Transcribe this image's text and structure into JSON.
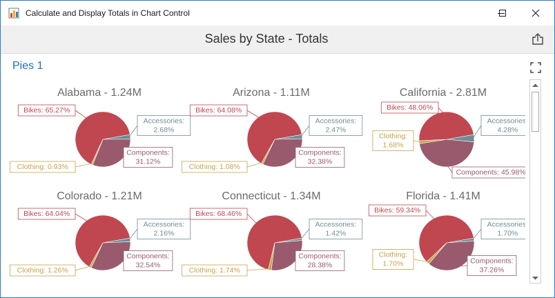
{
  "window": {
    "title": "Calculate and Display Totals in Chart Control"
  },
  "icons": {
    "app": "app-icon",
    "minimize": "minimize-icon",
    "maximize": "maximize-icon",
    "close": "close-icon",
    "export": "export-icon",
    "fullscreen": "fullscreen-icon",
    "scroll_up": "chevron-up-icon",
    "scroll_down": "chevron-down-icon"
  },
  "dashboard": {
    "title": "Sales by State - Totals"
  },
  "item": {
    "caption": "Pies 1"
  },
  "colors": {
    "Bikes": "#c0474f",
    "Accessories": "#6f8c96",
    "Clothing": "#c9a24c",
    "Components": "#9a5a6e",
    "accent": "#1e6fbf"
  },
  "chart_data": {
    "type": "pie",
    "series": [
      "Bikes",
      "Accessories",
      "Clothing",
      "Components"
    ],
    "pies": [
      {
        "title": "Alabama - 1.24M",
        "slices": [
          {
            "name": "Bikes",
            "value": 65.27,
            "label": "Bikes: 65.27%"
          },
          {
            "name": "Accessories",
            "value": 2.68,
            "label_lines": [
              "Accessories:",
              "2.68%"
            ]
          },
          {
            "name": "Components",
            "value": 31.12,
            "label_lines": [
              "Components:",
              "31.12%"
            ]
          },
          {
            "name": "Clothing",
            "value": 0.93,
            "label": "Clothing: 0.93%"
          }
        ]
      },
      {
        "title": "Arizona - 1.11M",
        "slices": [
          {
            "name": "Bikes",
            "value": 64.08,
            "label": "Bikes: 64.08%"
          },
          {
            "name": "Accessories",
            "value": 2.47,
            "label_lines": [
              "Accessories:",
              "2.47%"
            ]
          },
          {
            "name": "Components",
            "value": 32.38,
            "label_lines": [
              "Components:",
              "32.38%"
            ]
          },
          {
            "name": "Clothing",
            "value": 1.08,
            "label": "Clothing: 1.08%"
          }
        ]
      },
      {
        "title": "California - 2.81M",
        "slices": [
          {
            "name": "Bikes",
            "value": 48.06,
            "label": "Bikes: 48.06%"
          },
          {
            "name": "Accessories",
            "value": 4.28,
            "label_lines": [
              "Accessories:",
              "4.28%"
            ]
          },
          {
            "name": "Components",
            "value": 45.98,
            "label": "Components: 45.98%"
          },
          {
            "name": "Clothing",
            "value": 1.68,
            "label_lines": [
              "Clothing:",
              "1.68%"
            ]
          }
        ]
      },
      {
        "title": "Colorado - 1.21M",
        "slices": [
          {
            "name": "Bikes",
            "value": 64.04,
            "label": "Bikes: 64.04%"
          },
          {
            "name": "Accessories",
            "value": 2.16,
            "label_lines": [
              "Accessories:",
              "2.16%"
            ]
          },
          {
            "name": "Components",
            "value": 32.54,
            "label_lines": [
              "Components:",
              "32.54%"
            ]
          },
          {
            "name": "Clothing",
            "value": 1.26,
            "label": "Clothing: 1.26%"
          }
        ]
      },
      {
        "title": "Connecticut - 1.34M",
        "slices": [
          {
            "name": "Bikes",
            "value": 68.46,
            "label": "Bikes: 68.46%"
          },
          {
            "name": "Accessories",
            "value": 1.42,
            "label_lines": [
              "Accessories:",
              "1.42%"
            ]
          },
          {
            "name": "Components",
            "value": 28.38,
            "label_lines": [
              "Components:",
              "28.38%"
            ]
          },
          {
            "name": "Clothing",
            "value": 1.74,
            "label": "Clothing: 1.74%"
          }
        ]
      },
      {
        "title": "Florida - 1.41M",
        "slices": [
          {
            "name": "Bikes",
            "value": 59.34,
            "label": "Bikes: 59.34%"
          },
          {
            "name": "Accessories",
            "value": 1.7,
            "label_lines": [
              "Accessories:",
              "1.70%"
            ]
          },
          {
            "name": "Components",
            "value": 37.26,
            "label_lines": [
              "Components:",
              "37.26%"
            ]
          },
          {
            "name": "Clothing",
            "value": 1.7,
            "label_lines": [
              "Clothing:",
              "1.70%"
            ]
          }
        ]
      }
    ]
  }
}
